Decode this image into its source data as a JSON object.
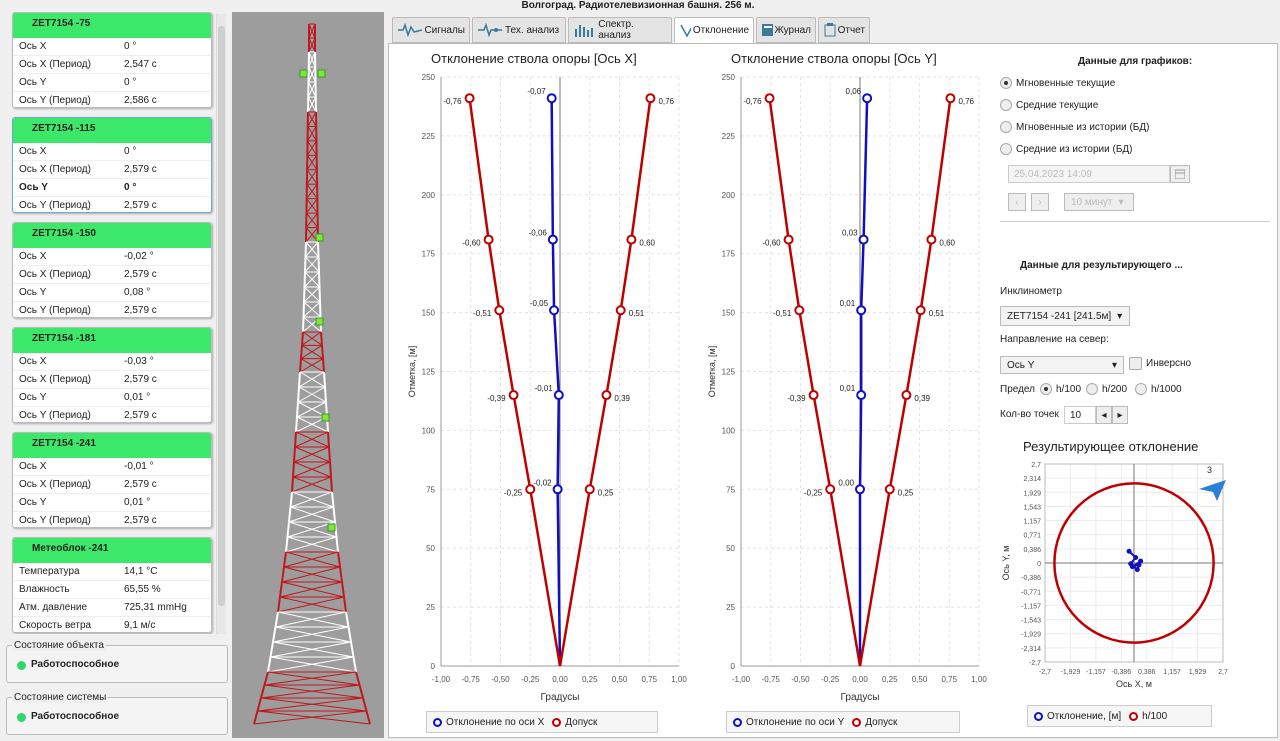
{
  "title": "Волгоград. Радиотелевизионная башня. 256 м.",
  "tabs": [
    "Сигналы",
    "Тех. анализ",
    "Спектр. анализ",
    "Отклонение",
    "Журнал",
    "Отчет"
  ],
  "sensors": [
    {
      "name": "ZET7154 -75",
      "rows": [
        [
          "Ось X",
          "0 °"
        ],
        [
          "Ось X (Период)",
          "2,547 с"
        ],
        [
          "Ось Y",
          "0 °"
        ],
        [
          "Ось Y (Период)",
          "2,586 с"
        ]
      ]
    },
    {
      "name": "ZET7154 -115",
      "rows": [
        [
          "Ось X",
          "0 °"
        ],
        [
          "Ось X (Период)",
          "2,579 с"
        ],
        [
          "Ось Y",
          "0 °"
        ],
        [
          "Ось Y (Период)",
          "2,579 с"
        ]
      ]
    },
    {
      "name": "ZET7154 -150",
      "rows": [
        [
          "Ось X",
          "-0,02 °"
        ],
        [
          "Ось X (Период)",
          "2,579 с"
        ],
        [
          "Ось Y",
          "0,08 °"
        ],
        [
          "Ось Y (Период)",
          "2,579 с"
        ]
      ]
    },
    {
      "name": "ZET7154 -181",
      "rows": [
        [
          "Ось X",
          "-0,03 °"
        ],
        [
          "Ось X (Период)",
          "2,579 с"
        ],
        [
          "Ось Y",
          "0,01 °"
        ],
        [
          "Ось Y (Период)",
          "2,579 с"
        ]
      ]
    },
    {
      "name": "ZET7154 -241",
      "rows": [
        [
          "Ось X",
          "-0,01 °"
        ],
        [
          "Ось X (Период)",
          "2,579 с"
        ],
        [
          "Ось Y",
          "0,01 °"
        ],
        [
          "Ось Y (Период)",
          "2,579 с"
        ]
      ]
    },
    {
      "name": "Метеоблок -241",
      "rows": [
        [
          "Температура",
          "14,1 °C"
        ],
        [
          "Влажность",
          "65,55 %"
        ],
        [
          "Атм. давление",
          "725,31 mmHg"
        ],
        [
          "Скорость ветра",
          "9,1 м/с"
        ]
      ]
    }
  ],
  "state_object": {
    "title": "Состояние объекта",
    "value": "Работоспособное"
  },
  "state_system": {
    "title": "Состояние системы",
    "value": "Работоспособное"
  },
  "side": {
    "graphs_title": "Данные для графиков:",
    "radios": [
      "Мгновенные текущие",
      "Средние текущие",
      "Мгновенные из истории (БД)",
      "Средние из истории (БД)"
    ],
    "date": "25.04.2023 14:09",
    "interval": "10 минут",
    "result_title": "Данные для результирующего ...",
    "inclinometer_label": "Инклинометр",
    "inclinometer": "ZET7154 -241 [241.5м]",
    "north_label": "Направление на север:",
    "north": "Ось Y",
    "inverse": "Инверсно",
    "limit_label": "Предел",
    "limits": [
      "h/100",
      "h/200",
      "h/1000"
    ],
    "points_label": "Кол-во точек",
    "points": "10"
  },
  "chart_data": [
    {
      "type": "line",
      "title": "Отклонение ствола опоры [Ось X]",
      "xlabel": "Градусы",
      "ylabel": "Отметка, [м]",
      "xlim": [
        -1,
        1
      ],
      "ylim": [
        0,
        250
      ],
      "xticks": [
        "-1,00",
        "-0,75",
        "-0,50",
        "-0,25",
        "0,00",
        "0,25",
        "0,50",
        "0,75",
        "1,00"
      ],
      "yticks": [
        "0",
        "25",
        "50",
        "75",
        "100",
        "125",
        "150",
        "175",
        "200",
        "225",
        "250"
      ],
      "series": [
        {
          "name": "Отклонение по оси X",
          "color": "#1010c0",
          "points": [
            [
              0,
              0
            ],
            [
              -0.02,
              75
            ],
            [
              -0.01,
              115
            ],
            [
              -0.05,
              151
            ],
            [
              -0.06,
              181
            ],
            [
              -0.07,
              241
            ]
          ],
          "labels": [
            "",
            "-0,02",
            "-0,01",
            "-0,05",
            "-0,06",
            "-0,07"
          ]
        },
        {
          "name": "Допуск",
          "color": "#c00000",
          "points": [
            [
              0,
              0
            ],
            [
              0.25,
              75
            ],
            [
              0.39,
              115
            ],
            [
              0.51,
              151
            ],
            [
              0.6,
              181
            ],
            [
              0.76,
              241
            ]
          ],
          "labels": [
            "",
            "0,25",
            "0,39",
            "0,51",
            "0,60",
            "0,76"
          ]
        },
        {
          "name": "",
          "color": "#c00000",
          "points": [
            [
              0,
              0
            ],
            [
              -0.25,
              75
            ],
            [
              -0.39,
              115
            ],
            [
              -0.51,
              151
            ],
            [
              -0.6,
              181
            ],
            [
              -0.76,
              241
            ]
          ],
          "labels": [
            "",
            "-0,25",
            "-0,39",
            "-0,51",
            "-0,60",
            "-0,76"
          ]
        }
      ],
      "legend": [
        "Отклонение по оси X",
        "Допуск"
      ]
    },
    {
      "type": "line",
      "title": "Отклонение ствола опоры [Ось Y]",
      "xlabel": "Градусы",
      "ylabel": "Отметка, [м]",
      "xlim": [
        -1,
        1
      ],
      "ylim": [
        0,
        250
      ],
      "xticks": [
        "-1,00",
        "-0,75",
        "-0,50",
        "-0,25",
        "0,00",
        "0,25",
        "0,50",
        "0,75",
        "1,00"
      ],
      "yticks": [
        "0",
        "25",
        "50",
        "75",
        "100",
        "125",
        "150",
        "175",
        "200",
        "225",
        "250"
      ],
      "series": [
        {
          "name": "Отклонение по оси Y",
          "color": "#1010c0",
          "points": [
            [
              0,
              0
            ],
            [
              0,
              75
            ],
            [
              0.01,
              115
            ],
            [
              0.01,
              151
            ],
            [
              0.03,
              181
            ],
            [
              0.06,
              241
            ]
          ],
          "labels": [
            "",
            "0,00",
            "0,01",
            "0,01",
            "0,03",
            "0,06"
          ]
        },
        {
          "name": "Допуск",
          "color": "#c00000",
          "points": [
            [
              0,
              0
            ],
            [
              0.25,
              75
            ],
            [
              0.39,
              115
            ],
            [
              0.51,
              151
            ],
            [
              0.6,
              181
            ],
            [
              0.76,
              241
            ]
          ],
          "labels": [
            "",
            "0,25",
            "0,39",
            "0,51",
            "0,60",
            "0,76"
          ]
        },
        {
          "name": "",
          "color": "#c00000",
          "points": [
            [
              0,
              0
            ],
            [
              -0.25,
              75
            ],
            [
              -0.39,
              115
            ],
            [
              -0.51,
              151
            ],
            [
              -0.6,
              181
            ],
            [
              -0.76,
              241
            ]
          ],
          "labels": [
            "",
            "-0,25",
            "-0,39",
            "-0,51",
            "-0,60",
            "-0,76"
          ]
        }
      ],
      "legend": [
        "Отклонение по оси Y",
        "Допуск"
      ]
    },
    {
      "type": "scatter",
      "title": "Результирующее отклонение",
      "xlabel": "Ось X, м",
      "ylabel": "Ось Y, м",
      "xlim": [
        -2.7,
        2.7
      ],
      "ylim": [
        -2.7,
        2.7
      ],
      "ticks": [
        "-2,7",
        "-2,314",
        "-1,929",
        "-1,543",
        "-1,157",
        "-0,771",
        "-0,386",
        "0",
        "0,386",
        "0,771",
        "1,157",
        "1,543",
        "1,929",
        "2,314",
        "2,7"
      ],
      "xticks": [
        "-2,7",
        "-1,929",
        "-1,157",
        "-0,386",
        "0,386",
        "1,157",
        "1,929",
        "2,7"
      ],
      "limit_radius": 2.415,
      "points": [
        [
          -0.15,
          0.32
        ],
        [
          0.05,
          0.15
        ],
        [
          -0.1,
          -0.02
        ],
        [
          0.1,
          -0.18
        ],
        [
          0.2,
          0.05
        ],
        [
          -0.05,
          -0.1
        ],
        [
          0.15,
          -0.05
        ]
      ],
      "north_label": "3",
      "legend": [
        "Отклонение, [м]",
        "h/100"
      ]
    }
  ]
}
